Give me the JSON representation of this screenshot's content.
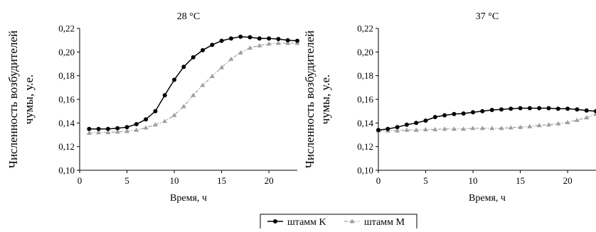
{
  "chart_data": [
    {
      "type": "line",
      "title": "28 °C",
      "xlabel": "Время, ч",
      "ylabel_lines": [
        "Численность возбудителей",
        "чумы, у.е."
      ],
      "xlim": [
        0,
        23
      ],
      "ylim": [
        0.1,
        0.22
      ],
      "xticks": [
        0,
        5,
        10,
        15,
        20
      ],
      "xtick_labels": [
        "0",
        "5",
        "10",
        "15",
        "20"
      ],
      "yticks": [
        0.1,
        0.12,
        0.14,
        0.16,
        0.18,
        0.2,
        0.22
      ],
      "ytick_labels": [
        "0,10",
        "0,12",
        "0,14",
        "0,16",
        "0,18",
        "0,20",
        "0,22"
      ],
      "grid": false,
      "x": [
        1,
        2,
        3,
        4,
        5,
        6,
        7,
        8,
        9,
        10,
        11,
        12,
        13,
        14,
        15,
        16,
        17,
        18,
        19,
        20,
        21,
        22,
        23
      ],
      "series": [
        {
          "name": "штамм K",
          "color": "#000000",
          "marker": "circle",
          "dash": "solid",
          "values": [
            0.135,
            0.135,
            0.135,
            0.1355,
            0.1365,
            0.139,
            0.143,
            0.15,
            0.1635,
            0.1765,
            0.1875,
            0.1955,
            0.2015,
            0.206,
            0.2095,
            0.2115,
            0.213,
            0.2125,
            0.2115,
            0.2115,
            0.211,
            0.21,
            0.2095
          ]
        },
        {
          "name": "штамм M",
          "color": "#9e9e9e",
          "marker": "triangle",
          "dash": "dash-dot",
          "values": [
            0.1315,
            0.132,
            0.132,
            0.1325,
            0.133,
            0.134,
            0.136,
            0.1385,
            0.1415,
            0.1465,
            0.154,
            0.1635,
            0.172,
            0.1795,
            0.187,
            0.194,
            0.1995,
            0.2035,
            0.2055,
            0.207,
            0.2075,
            0.2075,
            0.2075
          ]
        }
      ]
    },
    {
      "type": "line",
      "title": "37 °C",
      "xlabel": "Время, ч",
      "ylabel_lines": [
        "Численность возбудителей",
        "чумы, у.е."
      ],
      "xlim": [
        0,
        23
      ],
      "ylim": [
        0.1,
        0.22
      ],
      "xticks": [
        0,
        5,
        10,
        15,
        20
      ],
      "xtick_labels": [
        "0",
        "5",
        "10",
        "15",
        "20"
      ],
      "yticks": [
        0.1,
        0.12,
        0.14,
        0.16,
        0.18,
        0.2,
        0.22
      ],
      "ytick_labels": [
        "0,10",
        "0,12",
        "0,14",
        "0,16",
        "0,18",
        "0,20",
        "0,22"
      ],
      "grid": false,
      "x": [
        0,
        1,
        2,
        3,
        4,
        5,
        6,
        7,
        8,
        9,
        10,
        11,
        12,
        13,
        14,
        15,
        16,
        17,
        18,
        19,
        20,
        21,
        22,
        23
      ],
      "series": [
        {
          "name": "штамм K",
          "color": "#000000",
          "marker": "circle",
          "dash": "solid",
          "values": [
            0.134,
            0.135,
            0.1365,
            0.1385,
            0.14,
            0.142,
            0.145,
            0.1465,
            0.1475,
            0.148,
            0.149,
            0.15,
            0.151,
            0.1515,
            0.152,
            0.1525,
            0.1525,
            0.1525,
            0.1525,
            0.152,
            0.152,
            0.1515,
            0.1505,
            0.15
          ]
        },
        {
          "name": "штамм M",
          "color": "#9e9e9e",
          "marker": "triangle",
          "dash": "dash-dot",
          "values": [
            0.1335,
            0.1335,
            0.1335,
            0.134,
            0.134,
            0.1345,
            0.1345,
            0.135,
            0.135,
            0.135,
            0.1355,
            0.1355,
            0.1355,
            0.1355,
            0.136,
            0.1365,
            0.137,
            0.138,
            0.1385,
            0.1395,
            0.1405,
            0.1425,
            0.1445,
            0.1475
          ]
        }
      ]
    }
  ],
  "legend": {
    "placement": "bottom-center",
    "items": [
      {
        "label": "штамм K",
        "marker": "circle",
        "color": "#000000"
      },
      {
        "label": "штамм M",
        "marker": "triangle",
        "color": "#9e9e9e"
      }
    ]
  }
}
